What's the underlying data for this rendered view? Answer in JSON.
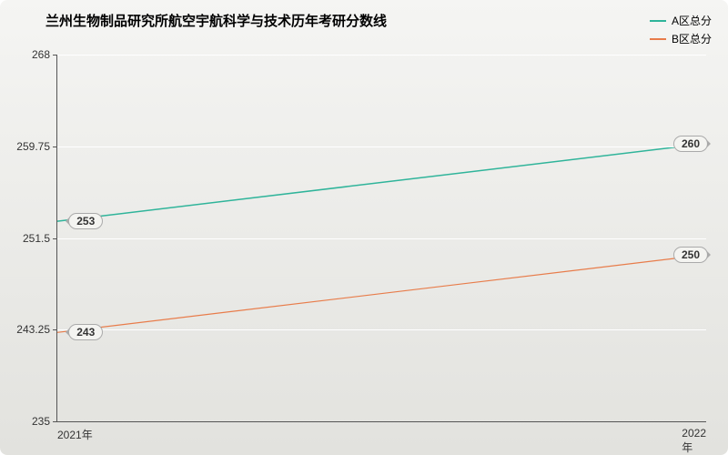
{
  "chart": {
    "type": "line",
    "title": "兰州生物制品研究所航空宇航科学与技术历年考研分数线",
    "title_fontsize": 15,
    "title_fontweight": "bold",
    "background": {
      "top_color": "#f5f5f3",
      "bottom_color": "#e2e2de"
    },
    "plot_border_color": "#555555",
    "x": {
      "categories": [
        "2021年",
        "2022年"
      ],
      "tick_fontsize": 12
    },
    "y": {
      "min": 235,
      "max": 268,
      "ticks": [
        235,
        243.25,
        251.5,
        259.75,
        268
      ],
      "tick_fontsize": 12
    },
    "grid": {
      "show": true,
      "color": "#ffffff",
      "width": 1
    },
    "series": [
      {
        "name": "A区总分",
        "color": "#2fb49a",
        "line_width": 1.5,
        "values": [
          253,
          260
        ]
      },
      {
        "name": "B区总分",
        "color": "#e87c4a",
        "line_width": 1.2,
        "values": [
          243,
          250
        ]
      }
    ],
    "value_label": {
      "fontsize": 12,
      "bg_color": "#f4f4f1",
      "border_color": "#aaaaaa"
    },
    "legend": {
      "position": "top-right",
      "fontsize": 12
    }
  }
}
